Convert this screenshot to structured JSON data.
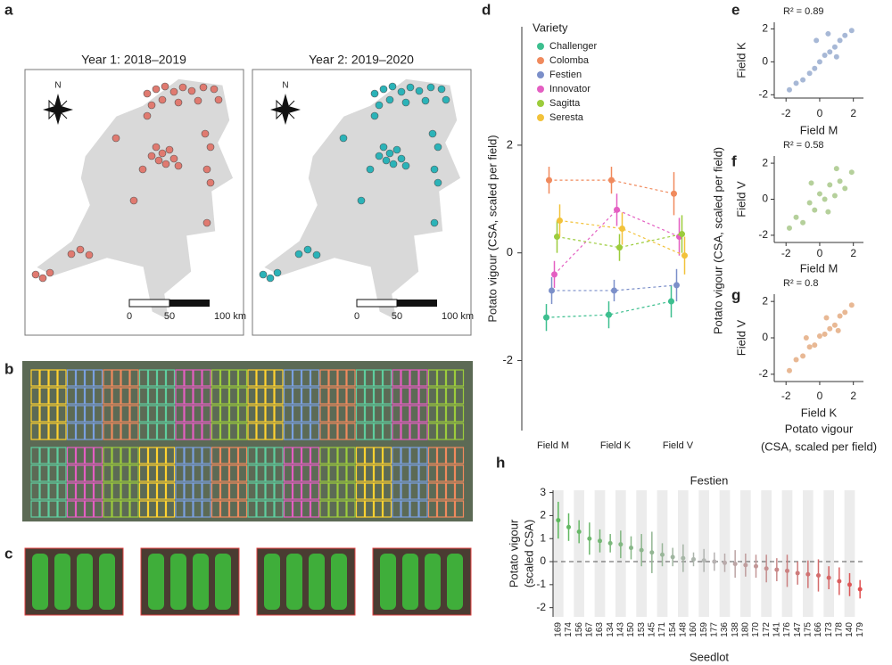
{
  "panel_labels": [
    "a",
    "b",
    "c",
    "d",
    "e",
    "f",
    "g",
    "h"
  ],
  "maps": {
    "titles": [
      "Year 1: 2018–2019",
      "Year 2: 2019–2020"
    ],
    "north": "N",
    "scale_labels": [
      "0",
      "50",
      "100 km"
    ],
    "colors": [
      "#e07a70",
      "#2bb3b8"
    ]
  },
  "shared_label": {
    "vertical": "Potato vigour (CSA, scaled per field)",
    "bottom": [
      "Potato vigour",
      "(CSA, scaled per field)"
    ]
  },
  "chart_data": [
    {
      "type": "means",
      "legend_title": "Variety",
      "ylabel": "Potato vigour (CSA, scaled per field)",
      "categories": [
        "Field M",
        "Field K",
        "Field V"
      ],
      "ylim": [
        -3.3,
        4.2
      ],
      "yticks": [
        -2,
        0,
        2
      ],
      "series": [
        {
          "name": "Challenger",
          "color": "#3dbf8f",
          "values": [
            -1.2,
            -1.15,
            -0.9
          ],
          "errors": [
            0.25,
            0.25,
            0.3
          ]
        },
        {
          "name": "Colomba",
          "color": "#f08a5d",
          "values": [
            1.35,
            1.35,
            1.1
          ],
          "errors": [
            0.25,
            0.25,
            0.4
          ]
        },
        {
          "name": "Festien",
          "color": "#7b8fc9",
          "values": [
            -0.7,
            -0.7,
            -0.6
          ],
          "errors": [
            0.25,
            0.2,
            0.3
          ]
        },
        {
          "name": "Innovator",
          "color": "#e45fc2",
          "values": [
            -0.4,
            0.8,
            0.3
          ],
          "errors": [
            0.25,
            0.3,
            0.35
          ]
        },
        {
          "name": "Sagitta",
          "color": "#9ccc3c",
          "values": [
            0.3,
            0.1,
            0.35
          ],
          "errors": [
            0.3,
            0.25,
            0.35
          ]
        },
        {
          "name": "Seresta",
          "color": "#f2c23a",
          "values": [
            0.6,
            0.45,
            -0.05
          ],
          "errors": [
            0.3,
            0.3,
            0.35
          ]
        }
      ]
    },
    {
      "type": "scatter",
      "annotation": "R² = 0.89",
      "xlabel": "Field M",
      "ylabel": "Field K",
      "xlim": [
        -2.7,
        2.6
      ],
      "ylim": [
        -2.2,
        2.4
      ],
      "xticks": [
        -2,
        0,
        2
      ],
      "yticks": [
        -2,
        0,
        2
      ],
      "x": [
        -1.8,
        -1.4,
        -1.0,
        -0.6,
        -0.3,
        0.0,
        0.3,
        0.6,
        0.9,
        1.2,
        1.5,
        1.9,
        -0.2,
        0.5,
        1.0
      ],
      "y": [
        -1.7,
        -1.3,
        -1.1,
        -0.7,
        -0.4,
        0.0,
        0.4,
        0.6,
        0.9,
        1.3,
        1.6,
        1.9,
        1.3,
        1.7,
        0.3
      ],
      "color": "#8aa0c8"
    },
    {
      "type": "scatter",
      "annotation": "R² = 0.58",
      "xlabel": "Field M",
      "ylabel": "Field V",
      "xlim": [
        -2.7,
        2.6
      ],
      "ylim": [
        -2.4,
        2.4
      ],
      "xticks": [
        -2,
        0,
        2
      ],
      "yticks": [
        -2,
        0,
        2
      ],
      "x": [
        -1.8,
        -1.4,
        -1.0,
        -0.6,
        -0.3,
        0.0,
        0.3,
        0.6,
        0.9,
        1.2,
        1.5,
        1.9,
        -0.5,
        0.5,
        1.0
      ],
      "y": [
        -1.6,
        -1.0,
        -1.3,
        -0.2,
        -0.6,
        0.3,
        0.0,
        0.8,
        0.2,
        1.0,
        0.6,
        1.5,
        0.9,
        -0.7,
        1.7
      ],
      "color": "#9cc07a"
    },
    {
      "type": "scatter",
      "annotation": "R² = 0.8",
      "xlabel": "Field K",
      "ylabel": "Field V",
      "xlim": [
        -2.7,
        2.6
      ],
      "ylim": [
        -2.4,
        2.4
      ],
      "xticks": [
        -2,
        0,
        2
      ],
      "yticks": [
        -2,
        0,
        2
      ],
      "x": [
        -1.8,
        -1.4,
        -1.0,
        -0.6,
        -0.3,
        0.0,
        0.3,
        0.6,
        0.9,
        1.2,
        1.5,
        1.9,
        -0.8,
        0.4,
        1.1
      ],
      "y": [
        -1.8,
        -1.2,
        -1.0,
        -0.5,
        -0.4,
        0.1,
        0.2,
        0.5,
        0.7,
        1.2,
        1.4,
        1.8,
        0.0,
        1.1,
        0.4
      ],
      "color": "#e0a070"
    },
    {
      "type": "errorbar",
      "title": "Festien",
      "ylabel": [
        "Potato vigour",
        "(scaled CSA)"
      ],
      "xlabel": "Seedlot",
      "ylim": [
        -2.4,
        3.1
      ],
      "yticks": [
        -2,
        -1,
        0,
        1,
        2,
        3
      ],
      "color_scale": [
        "#5cb85c",
        "#b5b5b5",
        "#e05050"
      ],
      "categories": [
        "169",
        "174",
        "156",
        "167",
        "163",
        "134",
        "143",
        "150",
        "153",
        "145",
        "171",
        "154",
        "148",
        "160",
        "159",
        "177",
        "136",
        "138",
        "180",
        "170",
        "172",
        "141",
        "176",
        "147",
        "175",
        "166",
        "173",
        "178",
        "140",
        "179"
      ],
      "values": [
        1.8,
        1.5,
        1.3,
        1.0,
        0.9,
        0.8,
        0.75,
        0.6,
        0.5,
        0.4,
        0.3,
        0.2,
        0.15,
        0.1,
        0.05,
        0.0,
        -0.05,
        -0.1,
        -0.15,
        -0.2,
        -0.3,
        -0.35,
        -0.4,
        -0.5,
        -0.55,
        -0.6,
        -0.7,
        -0.85,
        -1.0,
        -1.2
      ],
      "errors": [
        0.8,
        0.6,
        0.5,
        0.7,
        0.5,
        0.4,
        0.6,
        0.5,
        0.7,
        0.9,
        0.5,
        0.4,
        0.6,
        0.3,
        0.5,
        0.4,
        0.4,
        0.6,
        0.5,
        0.5,
        0.6,
        0.5,
        0.7,
        0.5,
        0.6,
        0.7,
        0.5,
        0.6,
        0.5,
        0.4
      ]
    }
  ]
}
